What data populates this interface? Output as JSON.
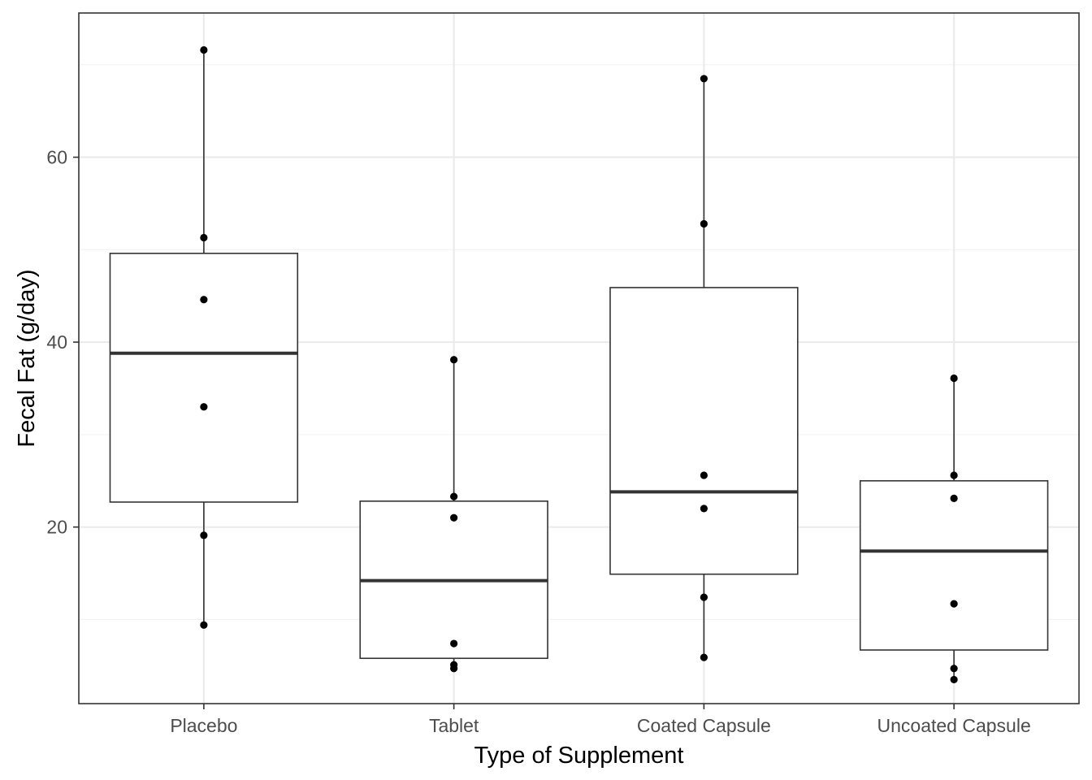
{
  "chart_data": {
    "type": "boxplot",
    "xlabel": "Type of Supplement",
    "ylabel": "Fecal Fat (g/day)",
    "categories": [
      "Placebo",
      "Tablet",
      "Coated Capsule",
      "Uncoated Capsule"
    ],
    "ylim": [
      0.9,
      75.6
    ],
    "yticks": [
      20,
      40,
      60
    ],
    "grid": true,
    "boxes": [
      {
        "category": "Placebo",
        "min": 9.4,
        "q1": 22.7,
        "median": 38.8,
        "q3": 49.6,
        "max": 71.6
      },
      {
        "category": "Tablet",
        "min": 4.7,
        "q1": 5.8,
        "median": 14.2,
        "q3": 22.8,
        "max": 38.1
      },
      {
        "category": "Coated Capsule",
        "min": 5.9,
        "q1": 14.9,
        "median": 23.8,
        "q3": 45.9,
        "max": 68.5
      },
      {
        "category": "Uncoated Capsule",
        "min": 3.5,
        "q1": 6.7,
        "median": 17.4,
        "q3": 25.0,
        "max": 36.1
      }
    ],
    "points": [
      {
        "category": "Placebo",
        "values": [
          71.6,
          51.3,
          44.6,
          33.0,
          19.1,
          9.4
        ]
      },
      {
        "category": "Tablet",
        "values": [
          38.1,
          23.3,
          21.0,
          7.4,
          5.1,
          4.7
        ]
      },
      {
        "category": "Coated Capsule",
        "values": [
          68.5,
          52.8,
          25.6,
          22.0,
          12.4,
          5.9
        ]
      },
      {
        "category": "Uncoated Capsule",
        "values": [
          36.1,
          25.6,
          23.1,
          11.7,
          4.7,
          3.5
        ]
      }
    ]
  }
}
